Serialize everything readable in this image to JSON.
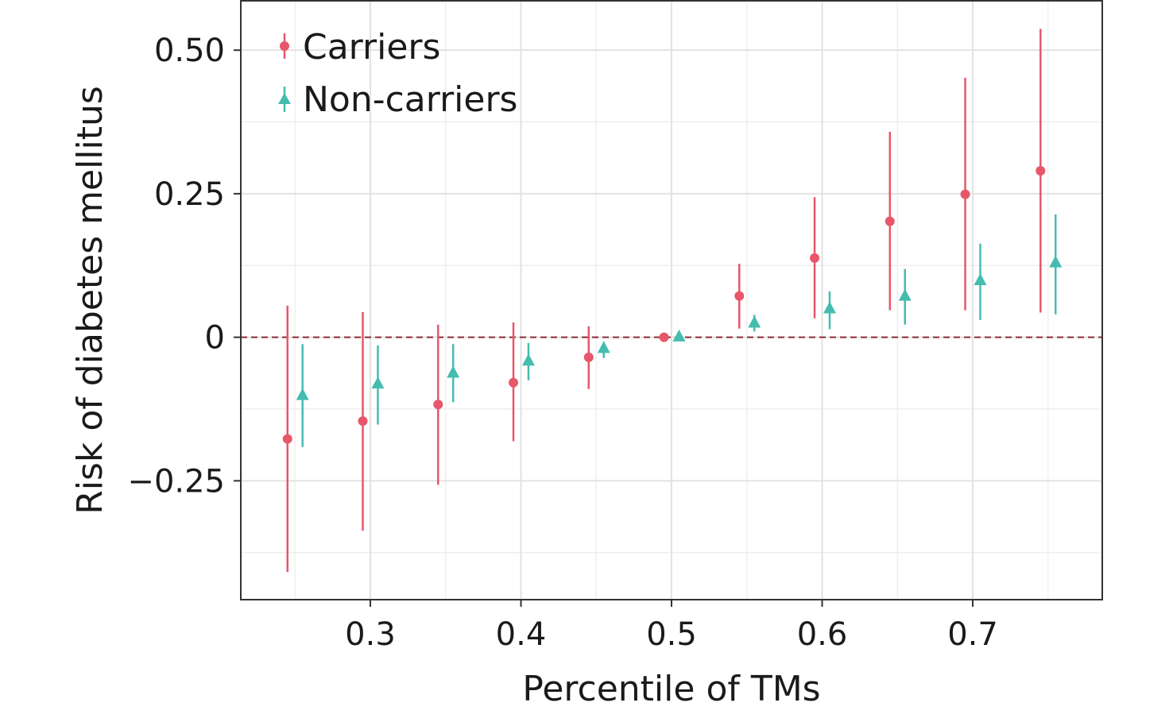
{
  "chart_data": {
    "type": "scatter",
    "subtype": "point-range",
    "title": "",
    "xlabel": "Percentile of TMs",
    "ylabel": "Risk of diabetes mellitus",
    "xlim": [
      0.214,
      0.786
    ],
    "ylim": [
      -0.457,
      0.586
    ],
    "x_ticks": [
      0.3,
      0.4,
      0.5,
      0.6,
      0.7
    ],
    "x_tick_labels": [
      "0.3",
      "0.4",
      "0.5",
      "0.6",
      "0.7"
    ],
    "y_ticks": [
      -0.25,
      0,
      0.25,
      0.5
    ],
    "y_tick_labels": [
      "−0.25",
      "0",
      "0.25",
      "0.50"
    ],
    "grid": true,
    "reference_line": {
      "y": 0,
      "style": "dashed",
      "color": "#8B2E3A"
    },
    "legend": {
      "placement": "top-left-inside"
    },
    "series": [
      {
        "name": "Carriers",
        "marker": "circle",
        "color": "#E8566A",
        "x": [
          0.245,
          0.295,
          0.345,
          0.395,
          0.445,
          0.495,
          0.545,
          0.595,
          0.645,
          0.695,
          0.745
        ],
        "y": [
          -0.177,
          -0.146,
          -0.117,
          -0.079,
          -0.035,
          0.0,
          0.072,
          0.138,
          0.202,
          0.249,
          0.29
        ],
        "lower": [
          -0.409,
          -0.337,
          -0.257,
          -0.181,
          -0.09,
          0.0,
          0.015,
          0.033,
          0.047,
          0.047,
          0.043
        ],
        "upper": [
          0.055,
          0.044,
          0.022,
          0.026,
          0.019,
          0.0,
          0.128,
          0.244,
          0.358,
          0.452,
          0.537
        ]
      },
      {
        "name": "Non-carriers",
        "marker": "triangle",
        "color": "#45BCB0",
        "x": [
          0.255,
          0.305,
          0.355,
          0.405,
          0.455,
          0.505,
          0.555,
          0.605,
          0.655,
          0.705,
          0.755
        ],
        "y": [
          -0.101,
          -0.081,
          -0.062,
          -0.041,
          -0.019,
          0.001,
          0.025,
          0.05,
          0.072,
          0.099,
          0.13
        ],
        "lower": [
          -0.191,
          -0.152,
          -0.113,
          -0.075,
          -0.036,
          0.0,
          0.01,
          0.014,
          0.022,
          0.03,
          0.04
        ],
        "upper": [
          -0.012,
          -0.014,
          -0.012,
          -0.01,
          -0.008,
          0.002,
          0.039,
          0.08,
          0.119,
          0.163,
          0.214
        ]
      }
    ]
  }
}
